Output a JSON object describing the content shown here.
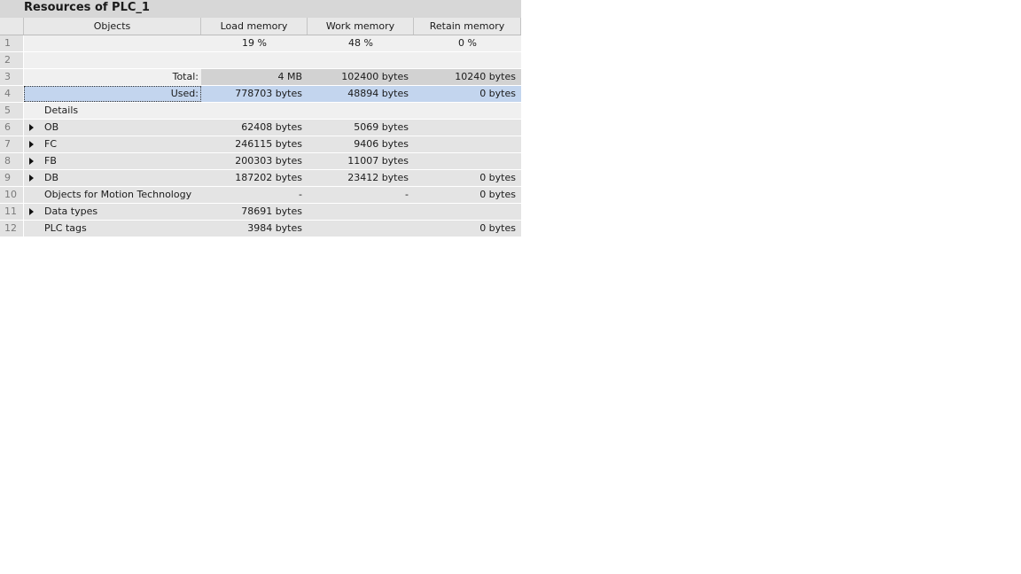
{
  "title": "Resources of PLC_1",
  "columns": {
    "objects": "Objects",
    "load": "Load memory",
    "work": "Work memory",
    "retain": "Retain memory"
  },
  "rows": [
    {
      "num": "1",
      "label": "",
      "load": "19 %",
      "work": "48 %",
      "retain": "0 %"
    },
    {
      "num": "2",
      "label": "",
      "load": "",
      "work": "",
      "retain": ""
    },
    {
      "num": "3",
      "label": "Total:",
      "load": "4 MB",
      "work": "102400 bytes",
      "retain": "10240 bytes"
    },
    {
      "num": "4",
      "label": "Used:",
      "load": "778703 bytes",
      "work": "48894 bytes",
      "retain": "0 bytes"
    },
    {
      "num": "5",
      "label": "Details",
      "load": "",
      "work": "",
      "retain": ""
    },
    {
      "num": "6",
      "label": "OB",
      "load": "62408 bytes",
      "work": "5069 bytes",
      "retain": ""
    },
    {
      "num": "7",
      "label": "FC",
      "load": "246115 bytes",
      "work": "9406 bytes",
      "retain": ""
    },
    {
      "num": "8",
      "label": "FB",
      "load": "200303 bytes",
      "work": "11007 bytes",
      "retain": ""
    },
    {
      "num": "9",
      "label": "DB",
      "load": "187202 bytes",
      "work": "23412 bytes",
      "retain": "0 bytes"
    },
    {
      "num": "10",
      "label": "Objects for Motion Technology",
      "load": "-",
      "work": "-",
      "retain": "0 bytes"
    },
    {
      "num": "11",
      "label": "Data types",
      "load": "78691 bytes",
      "work": "",
      "retain": ""
    },
    {
      "num": "12",
      "label": "PLC tags",
      "load": "3984 bytes",
      "work": "",
      "retain": "0 bytes"
    }
  ],
  "icons": {
    "expand": "expand-arrow-icon"
  },
  "colors": {
    "selected_row": "#c3d5ee",
    "header": "#e8e8e8"
  }
}
